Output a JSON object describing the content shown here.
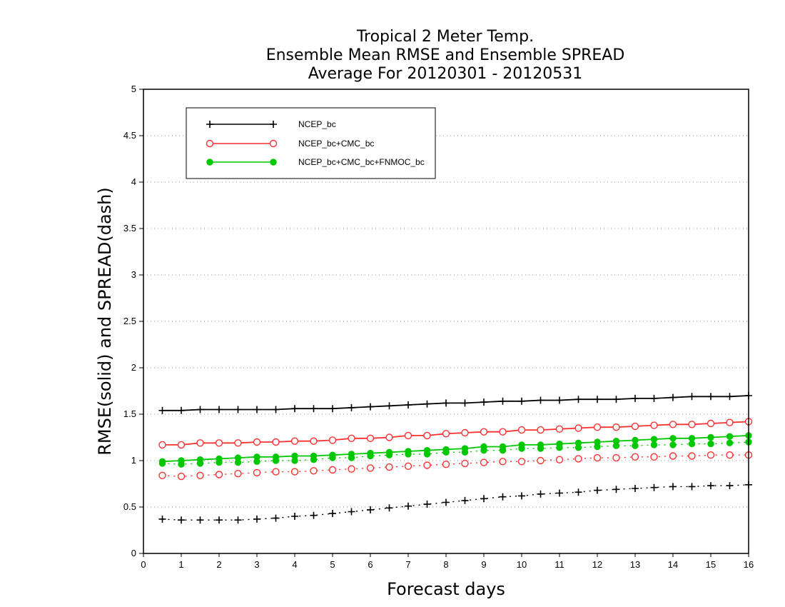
{
  "chart_data": {
    "type": "line",
    "title": [
      "Tropical 2 Meter Temp.",
      "Ensemble Mean RMSE and Ensemble SPREAD",
      "Average For 20120301 - 20120531"
    ],
    "xlabel": "Forecast days",
    "ylabel": "RMSE(solid) and SPREAD(dash)",
    "xlim": [
      0,
      16
    ],
    "ylim": [
      0,
      5
    ],
    "xticks": [
      "0",
      "1",
      "2",
      "3",
      "4",
      "5",
      "6",
      "7",
      "8",
      "9",
      "10",
      "11",
      "12",
      "13",
      "14",
      "15",
      "16"
    ],
    "yticks": [
      "0",
      "0.5",
      "1",
      "1.5",
      "2",
      "2.5",
      "3",
      "3.5",
      "4",
      "4.5",
      "5"
    ],
    "grid": "horizontal dotted",
    "legend_position": "top-left",
    "x": [
      0.5,
      1,
      1.5,
      2,
      2.5,
      3,
      3.5,
      4,
      4.5,
      5,
      5.5,
      6,
      6.5,
      7,
      7.5,
      8,
      8.5,
      9,
      9.5,
      10,
      10.5,
      11,
      11.5,
      12,
      12.5,
      13,
      13.5,
      14,
      14.5,
      15,
      15.5,
      16
    ],
    "series": [
      {
        "name": "NCEP_bc",
        "color": "#000000",
        "marker": "plus",
        "rmse": [
          1.54,
          1.54,
          1.55,
          1.55,
          1.55,
          1.55,
          1.55,
          1.56,
          1.56,
          1.56,
          1.57,
          1.58,
          1.59,
          1.6,
          1.61,
          1.62,
          1.62,
          1.63,
          1.64,
          1.64,
          1.65,
          1.65,
          1.66,
          1.66,
          1.66,
          1.67,
          1.67,
          1.68,
          1.69,
          1.69,
          1.69,
          1.7
        ],
        "spread": [
          0.37,
          0.36,
          0.36,
          0.36,
          0.36,
          0.37,
          0.38,
          0.4,
          0.41,
          0.43,
          0.45,
          0.47,
          0.49,
          0.51,
          0.53,
          0.55,
          0.57,
          0.59,
          0.61,
          0.62,
          0.64,
          0.65,
          0.66,
          0.68,
          0.69,
          0.7,
          0.71,
          0.72,
          0.72,
          0.73,
          0.73,
          0.74
        ]
      },
      {
        "name": "NCEP_bc+CMC_bc",
        "color": "#ff3030",
        "marker": "open-circle",
        "rmse": [
          1.17,
          1.17,
          1.19,
          1.19,
          1.19,
          1.2,
          1.2,
          1.21,
          1.21,
          1.22,
          1.24,
          1.24,
          1.25,
          1.27,
          1.27,
          1.29,
          1.3,
          1.31,
          1.31,
          1.33,
          1.33,
          1.34,
          1.35,
          1.36,
          1.36,
          1.37,
          1.38,
          1.39,
          1.39,
          1.4,
          1.41,
          1.42
        ],
        "spread": [
          0.84,
          0.83,
          0.84,
          0.85,
          0.86,
          0.87,
          0.88,
          0.88,
          0.89,
          0.9,
          0.91,
          0.92,
          0.93,
          0.94,
          0.95,
          0.96,
          0.97,
          0.98,
          0.99,
          0.99,
          1.0,
          1.01,
          1.02,
          1.03,
          1.03,
          1.04,
          1.04,
          1.05,
          1.05,
          1.06,
          1.06,
          1.06
        ]
      },
      {
        "name": "NCEP_bc+CMC_bc+FNMOC_bc",
        "color": "#00c800",
        "marker": "filled-circle",
        "rmse": [
          0.99,
          1.0,
          1.01,
          1.02,
          1.03,
          1.04,
          1.04,
          1.05,
          1.05,
          1.06,
          1.07,
          1.08,
          1.09,
          1.1,
          1.11,
          1.12,
          1.13,
          1.15,
          1.15,
          1.17,
          1.17,
          1.18,
          1.19,
          1.2,
          1.21,
          1.22,
          1.23,
          1.24,
          1.24,
          1.25,
          1.26,
          1.27
        ],
        "spread": [
          0.97,
          0.96,
          0.97,
          0.98,
          0.98,
          0.99,
          1.0,
          1.0,
          1.01,
          1.03,
          1.03,
          1.05,
          1.06,
          1.07,
          1.07,
          1.09,
          1.09,
          1.11,
          1.11,
          1.13,
          1.13,
          1.14,
          1.14,
          1.15,
          1.16,
          1.16,
          1.17,
          1.17,
          1.18,
          1.18,
          1.19,
          1.2
        ]
      }
    ]
  }
}
